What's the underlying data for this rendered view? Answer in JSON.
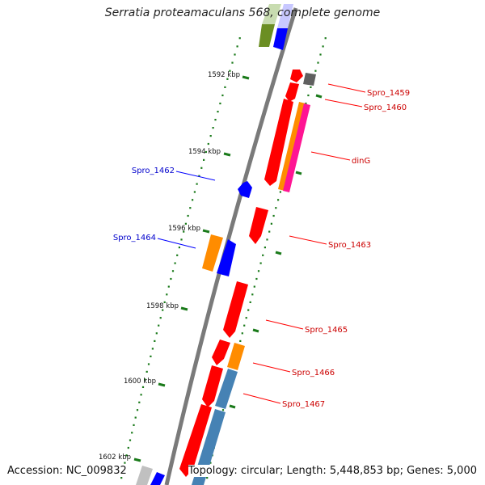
{
  "title": "Serratia proteamaculans 568, complete genome",
  "accession": "Accession: NC_009832",
  "topology": "Topology: circular; Length: 5,448,853 bp; Genes: 5,000",
  "colors": {
    "backbone": "#808080",
    "tick": "#1a7a1a",
    "red": "#ff0000",
    "blue": "#0000ff",
    "orange": "#ff8c00",
    "magenta": "#ff1493",
    "steelblue": "#4682b4",
    "olive": "#6b8e23",
    "gray": "#606060",
    "label_red": "#cc0000",
    "label_blue": "#0000cc"
  },
  "scale_labels": [
    "1592 kbp",
    "1594 kbp",
    "1596 kbp",
    "1598 kbp",
    "1600 kbp",
    "1602 kbp"
  ],
  "gene_labels": [
    {
      "text": "Spro_1459",
      "color": "red"
    },
    {
      "text": "Spro_1460",
      "color": "red"
    },
    {
      "text": "dinG",
      "color": "red"
    },
    {
      "text": "Spro_1462",
      "color": "blue"
    },
    {
      "text": "Spro_1463",
      "color": "red"
    },
    {
      "text": "Spro_1464",
      "color": "blue"
    },
    {
      "text": "Spro_1465",
      "color": "red"
    },
    {
      "text": "Spro_1466",
      "color": "red"
    },
    {
      "text": "Spro_1467",
      "color": "red"
    }
  ]
}
